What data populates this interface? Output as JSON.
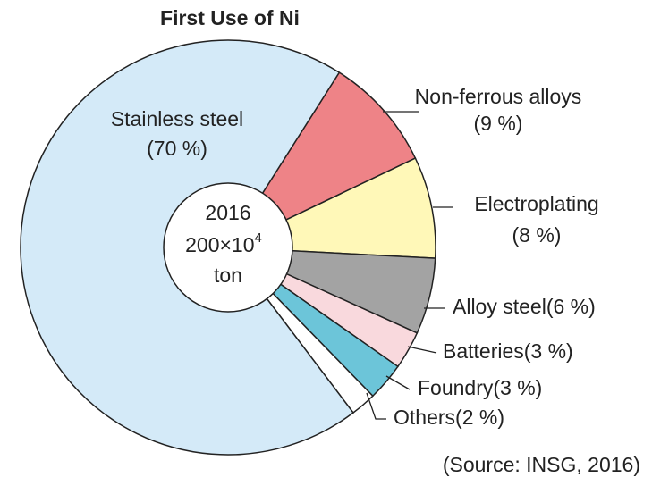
{
  "chart_data": {
    "type": "pie",
    "title": "First Use of Ni",
    "categories": [
      "Non-ferrous alloys",
      "Electroplating",
      "Alloy steel",
      "Batteries",
      "Foundry",
      "Others",
      "Stainless steel"
    ],
    "values": [
      9,
      8,
      6,
      3,
      3,
      2,
      70
    ],
    "value_labels": [
      "(9 %)",
      "(8 %)",
      "(6 %)",
      "(3 %)",
      "(3 %)",
      "(2 %)",
      "(70 %)"
    ],
    "colors": [
      "#ee8387",
      "#fff8b8",
      "#a3a3a3",
      "#f9d9dd",
      "#6cc5d9",
      "#ffffff",
      "#d4eaf8"
    ],
    "center": {
      "year": "2016",
      "amount": "200×10",
      "exponent": "4",
      "unit": "ton"
    },
    "source": "(Source: INSG, 2016)"
  }
}
